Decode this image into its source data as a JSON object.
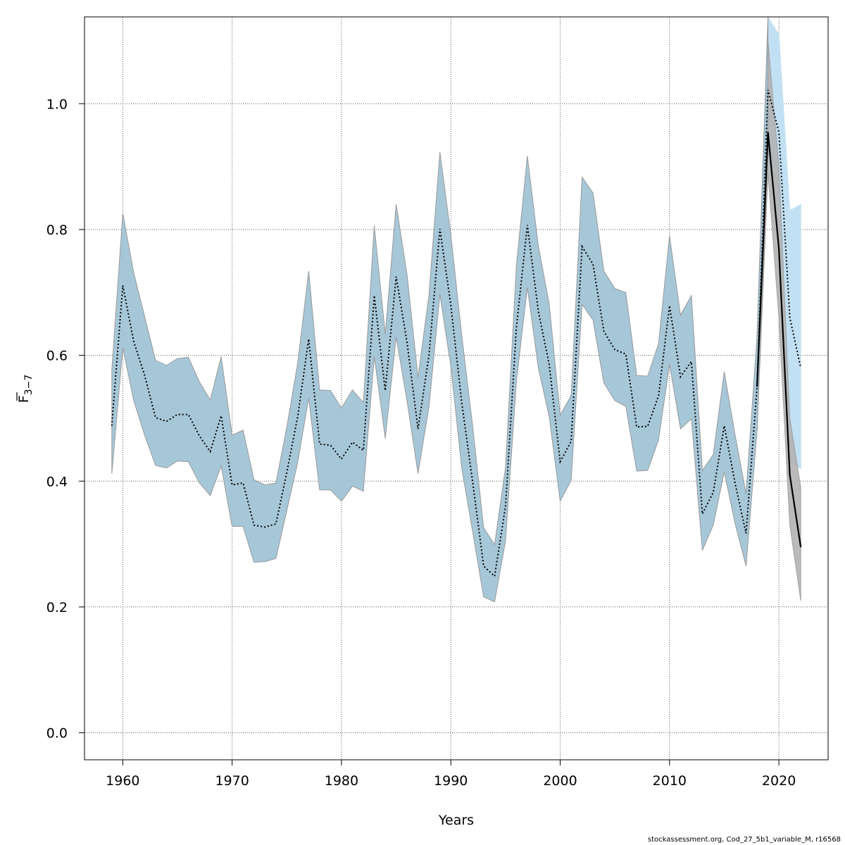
{
  "chart_data": {
    "type": "line",
    "xlabel": "Years",
    "ylabel": {
      "main": "F",
      "sub": "3−7",
      "overbar": true
    },
    "xlim": [
      1956.5,
      2024.5
    ],
    "ylim": [
      -0.043,
      1.138
    ],
    "xticks": [
      1960,
      1970,
      1980,
      1990,
      2000,
      2010,
      2020
    ],
    "yticks": [
      0.0,
      0.2,
      0.4,
      0.6,
      0.8,
      1.0
    ],
    "ytick_labels": [
      "0.0",
      "0.2",
      "0.4",
      "0.6",
      "0.8",
      "1.0"
    ],
    "grid": true,
    "colors": {
      "band_main": "#a1c4d6",
      "band_alt": "#c2e0f3",
      "band_grey": "#b3b3b3",
      "band_edge": "#999999",
      "line": "#000000",
      "grid": "#555555"
    },
    "years": [
      1959,
      1960,
      1961,
      1962,
      1963,
      1964,
      1965,
      1966,
      1967,
      1968,
      1969,
      1970,
      1971,
      1972,
      1973,
      1974,
      1975,
      1976,
      1977,
      1978,
      1979,
      1980,
      1981,
      1982,
      1983,
      1984,
      1985,
      1986,
      1987,
      1988,
      1989,
      1990,
      1991,
      1992,
      1993,
      1994,
      1995,
      1996,
      1997,
      1998,
      1999,
      2000,
      2001,
      2002,
      2003,
      2004,
      2005,
      2006,
      2007,
      2008,
      2009,
      2010,
      2011,
      2012,
      2013,
      2014,
      2015,
      2016,
      2017,
      2018,
      2019,
      2020,
      2021,
      2022
    ],
    "series": [
      {
        "estimate": [
          0.488,
          0.711,
          0.622,
          0.568,
          0.501,
          0.495,
          0.506,
          0.506,
          0.472,
          0.447,
          0.504,
          0.394,
          0.397,
          0.33,
          0.327,
          0.332,
          0.414,
          0.503,
          0.626,
          0.459,
          0.457,
          0.435,
          0.462,
          0.449,
          0.695,
          0.544,
          0.725,
          0.62,
          0.483,
          0.6,
          0.801,
          0.68,
          0.524,
          0.398,
          0.265,
          0.249,
          0.36,
          0.645,
          0.807,
          0.67,
          0.585,
          0.431,
          0.463,
          0.773,
          0.745,
          0.638,
          0.609,
          0.602,
          0.486,
          0.487,
          0.536,
          0.679,
          0.566,
          0.59,
          0.348,
          0.382,
          0.488,
          0.396,
          0.317,
          0.55,
          1.022,
          0.955,
          0.66,
          0.58
        ],
        "lower": [
          0.412,
          0.612,
          0.528,
          0.473,
          0.425,
          0.421,
          0.432,
          0.431,
          0.397,
          0.377,
          0.424,
          0.328,
          0.328,
          0.271,
          0.272,
          0.277,
          0.353,
          0.43,
          0.532,
          0.386,
          0.386,
          0.368,
          0.392,
          0.384,
          0.598,
          0.468,
          0.629,
          0.527,
          0.412,
          0.518,
          0.697,
          0.583,
          0.42,
          0.319,
          0.216,
          0.208,
          0.305,
          0.559,
          0.708,
          0.58,
          0.502,
          0.368,
          0.401,
          0.681,
          0.656,
          0.556,
          0.528,
          0.519,
          0.416,
          0.417,
          0.466,
          0.586,
          0.483,
          0.499,
          0.29,
          0.33,
          0.415,
          0.332,
          0.265,
          0.48,
          0.93,
          0.8,
          0.43,
          0.42
        ],
        "upper": [
          0.577,
          0.826,
          0.731,
          0.662,
          0.592,
          0.584,
          0.595,
          0.597,
          0.558,
          0.529,
          0.598,
          0.473,
          0.481,
          0.402,
          0.394,
          0.397,
          0.486,
          0.588,
          0.734,
          0.545,
          0.544,
          0.516,
          0.545,
          0.525,
          0.806,
          0.634,
          0.84,
          0.728,
          0.565,
          0.696,
          0.923,
          0.792,
          0.631,
          0.487,
          0.326,
          0.299,
          0.422,
          0.744,
          0.917,
          0.774,
          0.681,
          0.505,
          0.536,
          0.883,
          0.858,
          0.734,
          0.706,
          0.7,
          0.568,
          0.567,
          0.619,
          0.79,
          0.664,
          0.695,
          0.417,
          0.442,
          0.574,
          0.473,
          0.38,
          0.631,
          1.138,
          1.11,
          0.83,
          0.84
        ]
      },
      {
        "years": [
          2019,
          2020,
          2021,
          2022
        ],
        "estimate": [
          0.955,
          0.77,
          0.41,
          0.295
        ],
        "lower": [
          0.89,
          0.66,
          0.33,
          0.21
        ],
        "upper": [
          1.1,
          0.9,
          0.5,
          0.39
        ]
      }
    ]
  },
  "footer": "stockassessment.org, Cod_27_5b1_variable_M, r16568"
}
